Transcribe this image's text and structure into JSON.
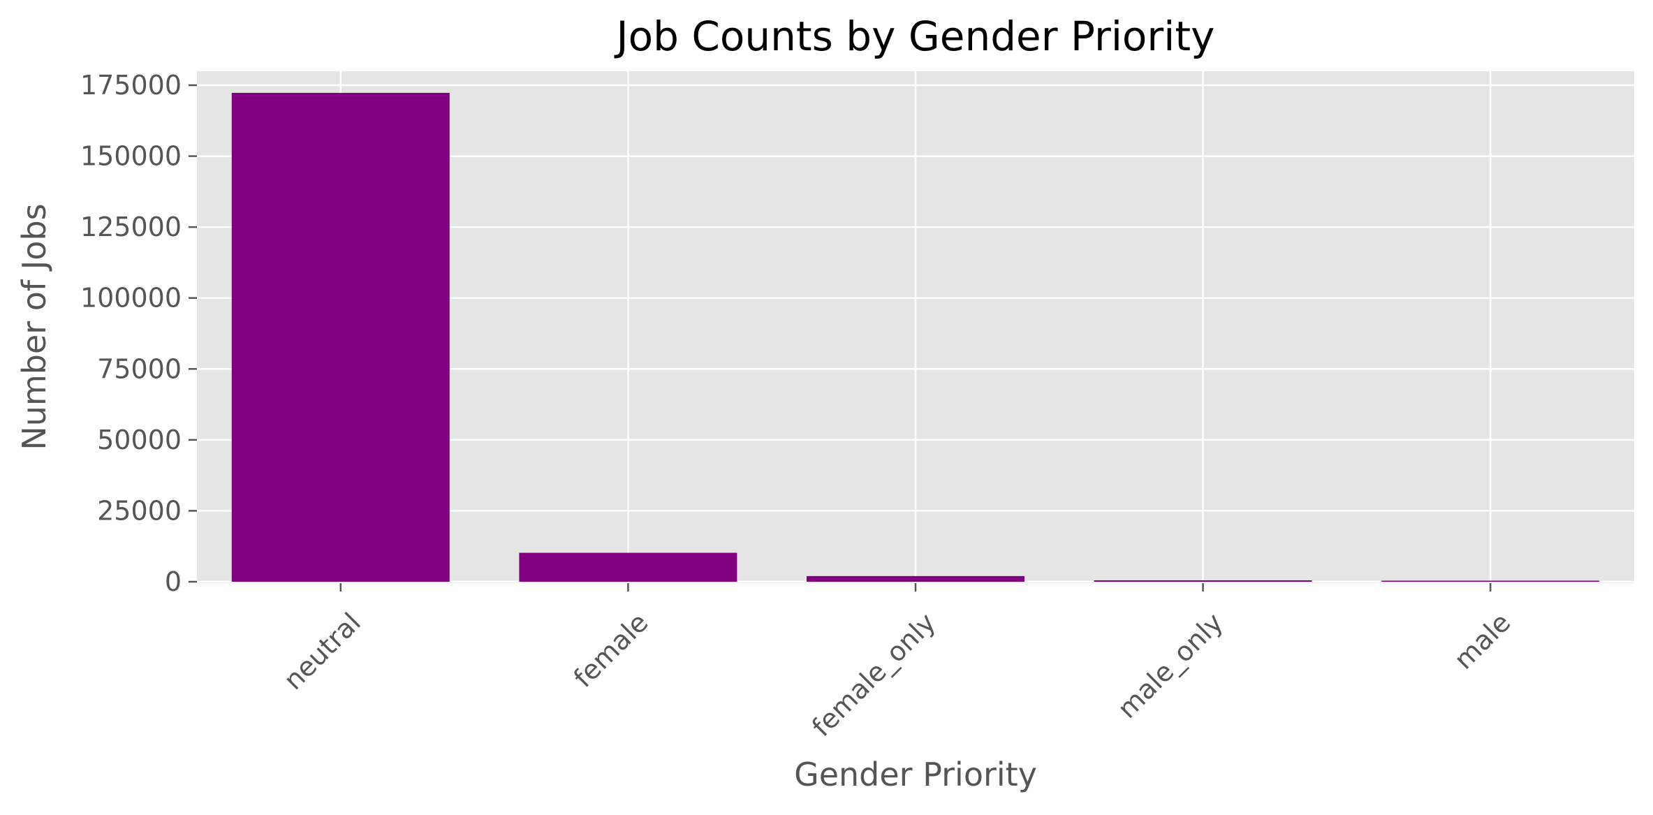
{
  "colors": {
    "plot_background": "#e5e5e5",
    "grid": "#ffffff",
    "bar": "#800080",
    "tick_mark": "#555555"
  },
  "chart_data": {
    "type": "bar",
    "title": "Job Counts by Gender Priority",
    "xlabel": "Gender Priority",
    "ylabel": "Number of Jobs",
    "categories": [
      "neutral",
      "female",
      "female_only",
      "male_only",
      "male"
    ],
    "values": [
      172300,
      10200,
      2000,
      500,
      60
    ],
    "ylim": [
      0,
      176000
    ],
    "yticks": [
      0,
      25000,
      50000,
      75000,
      100000,
      125000,
      150000,
      175000
    ],
    "ytick_labels": [
      "0",
      "25000",
      "50000",
      "75000",
      "100000",
      "125000",
      "150000",
      "175000"
    ],
    "xtick_rotation": 45,
    "grid": true,
    "legend": "none"
  }
}
